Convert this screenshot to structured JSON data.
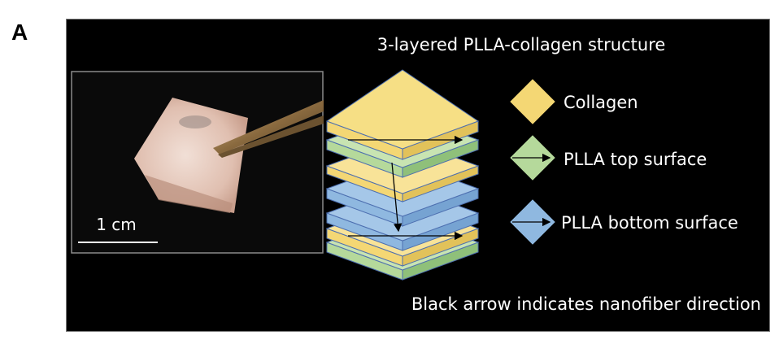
{
  "panel_label": "A",
  "diagram_title": "3-layered PLLA-collagen structure",
  "photo": {
    "scale_bar_label": "1 cm"
  },
  "legend": {
    "items": [
      {
        "label": "Collagen",
        "color": "#f4d774"
      },
      {
        "label": "PLLA top surface",
        "color": "#b5d99b"
      },
      {
        "label": "PLLA bottom surface",
        "color": "#8fb8e0"
      }
    ]
  },
  "caption": "Black arrow indicates nanofiber direction"
}
